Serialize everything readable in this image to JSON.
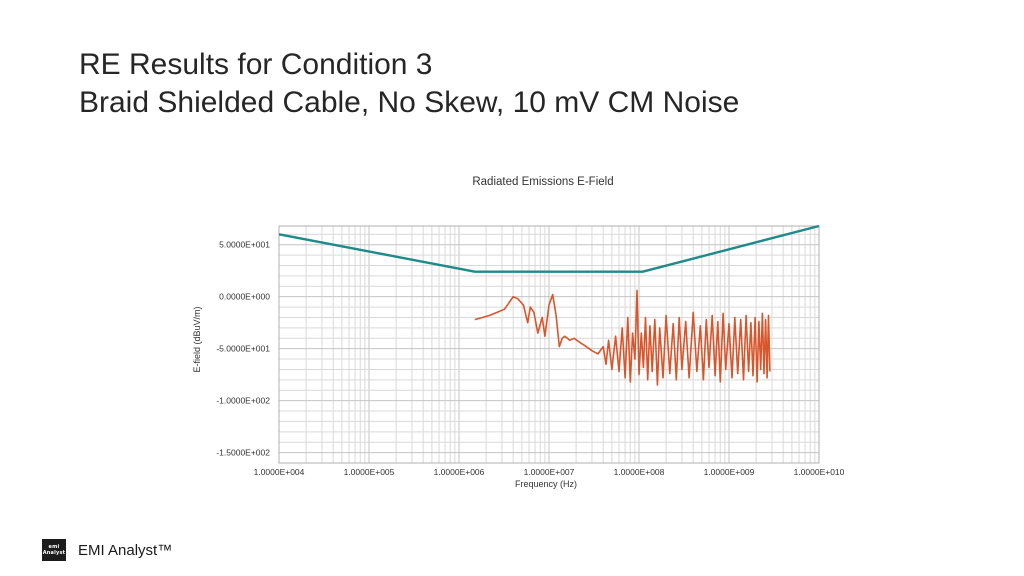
{
  "slide": {
    "title_line1": "RE Results for Condition 3",
    "title_line2": "Braid Shielded Cable, No Skew, 10 mV CM Noise"
  },
  "footer": {
    "logo_text_top": "emi",
    "logo_text_bottom": "Analyst",
    "brand": "EMI Analyst™"
  },
  "chart_data": {
    "type": "line",
    "title": "Radiated Emissions E-Field",
    "xlabel": "Frequency (Hz)",
    "ylabel": "E-field (dBuV/m)",
    "x_scale": "log",
    "xlim": [
      10000,
      10000000000
    ],
    "ylim": [
      -160,
      68
    ],
    "x_ticks": [
      {
        "value": 10000,
        "label": "1.0000E+004"
      },
      {
        "value": 100000,
        "label": "1.0000E+005"
      },
      {
        "value": 1000000,
        "label": "1.0000E+006"
      },
      {
        "value": 10000000,
        "label": "1.0000E+007"
      },
      {
        "value": 100000000,
        "label": "1.0000E+008"
      },
      {
        "value": 1000000000,
        "label": "1.0000E+009"
      },
      {
        "value": 10000000000,
        "label": "1.0000E+010"
      }
    ],
    "y_ticks": [
      {
        "value": 50,
        "label": "5.0000E+001"
      },
      {
        "value": 0,
        "label": "0.0000E+000"
      },
      {
        "value": -50,
        "label": "-5.0000E+001"
      },
      {
        "value": -100,
        "label": "-1.0000E+002"
      },
      {
        "value": -150,
        "label": "-1.5000E+002"
      }
    ],
    "grid": true,
    "colors": {
      "limit": "#1f8a8a",
      "emission": "#d9552b",
      "grid": "#d9d9d9"
    },
    "series": [
      {
        "role": "limit",
        "x": [
          10000,
          1500000,
          110000000,
          10000000000
        ],
        "y": [
          60,
          24,
          24,
          68
        ]
      },
      {
        "role": "emission",
        "x": [
          1500000,
          2200000,
          3200000,
          4000000,
          4500000,
          5200000,
          5800000,
          6200000,
          6800000,
          7500000,
          8400000,
          9000000,
          10000000,
          11000000,
          12000000,
          13000000,
          14000000,
          15000000,
          16000000,
          17000000,
          19000000,
          22000000,
          26000000,
          30000000,
          35000000,
          40000000,
          43000000,
          46000000,
          50000000,
          55000000,
          60000000,
          65000000,
          70000000,
          75000000,
          80000000,
          85000000,
          90000000,
          95000000,
          100000000,
          106000000,
          112000000,
          118000000,
          125000000,
          132000000,
          140000000,
          150000000,
          160000000,
          170000000,
          185000000,
          200000000,
          220000000,
          240000000,
          260000000,
          280000000,
          300000000,
          330000000,
          360000000,
          400000000,
          440000000,
          480000000,
          520000000,
          560000000,
          600000000,
          650000000,
          700000000,
          750000000,
          800000000,
          860000000,
          920000000,
          1000000000,
          1080000000,
          1160000000,
          1250000000,
          1350000000,
          1450000000,
          1550000000,
          1650000000,
          1750000000,
          1850000000,
          1950000000,
          2050000000,
          2150000000,
          2250000000,
          2350000000,
          2450000000,
          2550000000,
          2650000000,
          2750000000,
          2850000000
        ],
        "y": [
          -22,
          -18,
          -12,
          0,
          -2,
          -8,
          -25,
          -10,
          -15,
          -35,
          -20,
          -38,
          -8,
          2,
          -18,
          -48,
          -40,
          -38,
          -40,
          -42,
          -40,
          -44,
          -48,
          -52,
          -55,
          -48,
          -65,
          -42,
          -70,
          -38,
          -72,
          -30,
          -78,
          -20,
          -82,
          -35,
          -60,
          6,
          -75,
          -35,
          -68,
          -20,
          -80,
          -28,
          -72,
          -22,
          -85,
          -30,
          -78,
          -18,
          -74,
          -26,
          -80,
          -20,
          -70,
          -24,
          -78,
          -15,
          -72,
          -28,
          -80,
          -22,
          -68,
          -18,
          -76,
          -24,
          -82,
          -16,
          -70,
          -26,
          -78,
          -20,
          -74,
          -22,
          -80,
          -18,
          -72,
          -25,
          -76,
          -20,
          -82,
          -24,
          -70,
          -16,
          -74,
          -22,
          -78,
          -18,
          -72
        ]
      }
    ]
  }
}
